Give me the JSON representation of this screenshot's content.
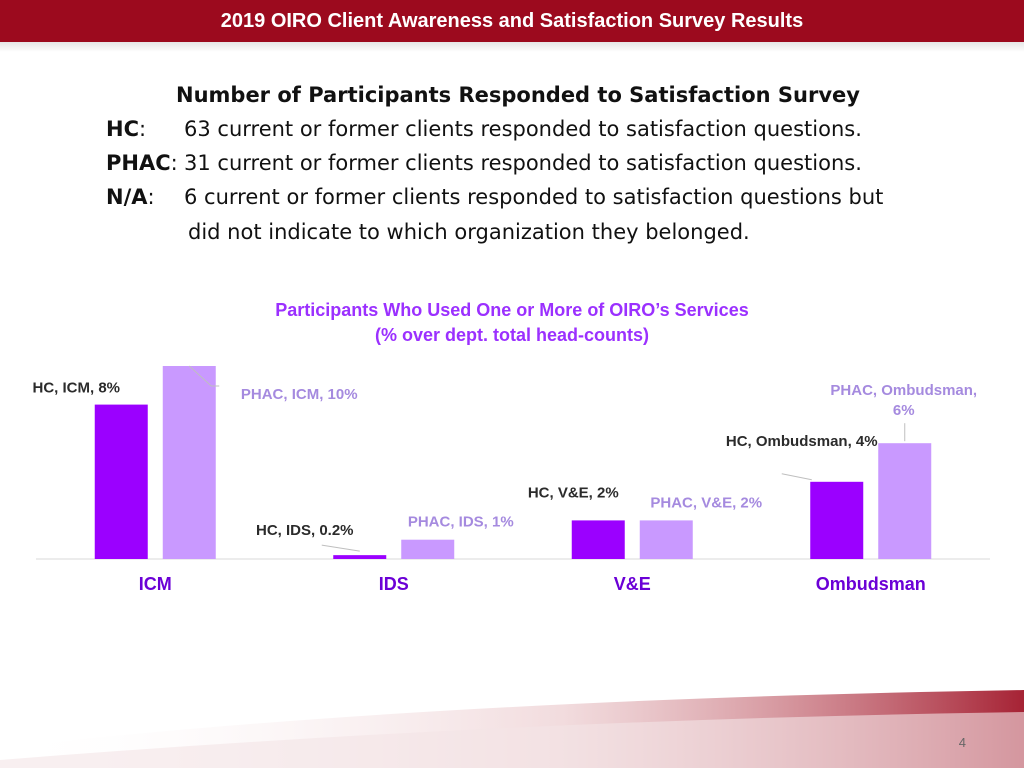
{
  "header": {
    "title": "2019 OIRO Client Awareness and Satisfaction Survey Results"
  },
  "intro": {
    "heading": "Number of Participants Responded to Satisfaction Survey",
    "rows": [
      {
        "label": "HC",
        "text": "63 current or former clients responded to satisfaction questions."
      },
      {
        "label": "PHAC",
        "text": "31 current or former clients responded to satisfaction questions."
      },
      {
        "label": "N/A",
        "text": "6 current or former clients responded to satisfaction questions but",
        "text2": "did not indicate to which organization they belonged."
      }
    ]
  },
  "chart_data": {
    "type": "bar",
    "title": "Participants Who Used One or More of OIRO’s Services",
    "subtitle": "(% over dept. total head-counts)",
    "categories": [
      "ICM",
      "IDS",
      "V&E",
      "Ombudsman"
    ],
    "series": [
      {
        "name": "HC",
        "values": [
          8,
          0.2,
          2,
          4
        ],
        "color": "#9b00ff",
        "labels": [
          "HC, ICM, 8%",
          "HC, IDS, 0.2%",
          "HC, V&E, 2%",
          "HC, Ombudsman, 4%"
        ]
      },
      {
        "name": "PHAC",
        "values": [
          10,
          1,
          2,
          6
        ],
        "color": "#c999ff",
        "labels": [
          "PHAC, ICM, 10%",
          "PHAC, IDS, 1%",
          "PHAC, V&E, 2%",
          "PHAC, Ombudsman, 6%"
        ]
      }
    ],
    "ylim": [
      0,
      10
    ],
    "grid": false,
    "legend": "none",
    "label_colors": {
      "HC": "#2b2b2b",
      "PHAC": "#a58adf",
      "axis": "#6b00d6"
    }
  },
  "footer": {
    "page_number": "4"
  }
}
